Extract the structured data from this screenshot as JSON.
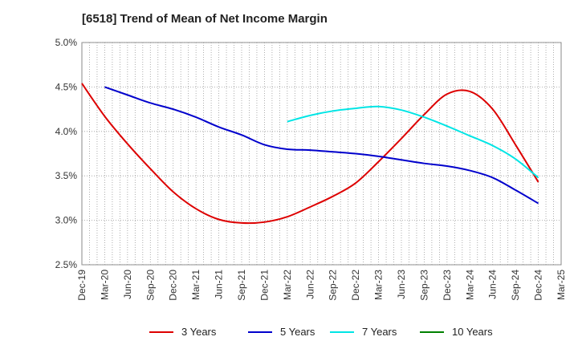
{
  "chart_data": {
    "type": "line",
    "title": "[6518]  Trend of Mean of Net Income Margin",
    "x": [
      "Dec-19",
      "Mar-20",
      "Jun-20",
      "Sep-20",
      "Dec-20",
      "Mar-21",
      "Jun-21",
      "Sep-21",
      "Dec-21",
      "Mar-22",
      "Jun-22",
      "Sep-22",
      "Dec-22",
      "Mar-23",
      "Jun-23",
      "Sep-23",
      "Dec-23",
      "Mar-24",
      "Jun-24",
      "Sep-24",
      "Dec-24",
      "Mar-25"
    ],
    "y_ticks": [
      "2.5%",
      "3.0%",
      "3.5%",
      "4.0%",
      "4.5%",
      "5.0%"
    ],
    "ylim": [
      2.5,
      5.0
    ],
    "grid": true,
    "legend_position": "bottom",
    "series": [
      {
        "name": "3 Years",
        "color": "#dd0000",
        "values": [
          4.54,
          4.17,
          3.86,
          3.58,
          3.32,
          3.13,
          3.01,
          2.97,
          2.98,
          3.04,
          3.15,
          3.27,
          3.42,
          3.66,
          3.92,
          4.19,
          4.42,
          4.45,
          4.25,
          3.85,
          3.43,
          null
        ]
      },
      {
        "name": "5 Years",
        "color": "#0000cc",
        "values": [
          null,
          4.5,
          4.41,
          4.32,
          4.25,
          4.16,
          4.05,
          3.96,
          3.85,
          3.8,
          3.79,
          3.77,
          3.75,
          3.72,
          3.68,
          3.64,
          3.61,
          3.56,
          3.48,
          3.34,
          3.19,
          null
        ]
      },
      {
        "name": "7 Years",
        "color": "#00e5e5",
        "values": [
          null,
          null,
          null,
          null,
          null,
          null,
          null,
          null,
          null,
          4.11,
          4.18,
          4.23,
          4.26,
          4.28,
          4.24,
          4.16,
          4.06,
          3.95,
          3.84,
          3.69,
          3.48,
          null
        ]
      },
      {
        "name": "10 Years",
        "color": "#008000",
        "values": [
          null,
          null,
          null,
          null,
          null,
          null,
          null,
          null,
          null,
          null,
          null,
          null,
          null,
          null,
          null,
          null,
          null,
          null,
          null,
          null,
          null,
          null
        ]
      }
    ]
  }
}
